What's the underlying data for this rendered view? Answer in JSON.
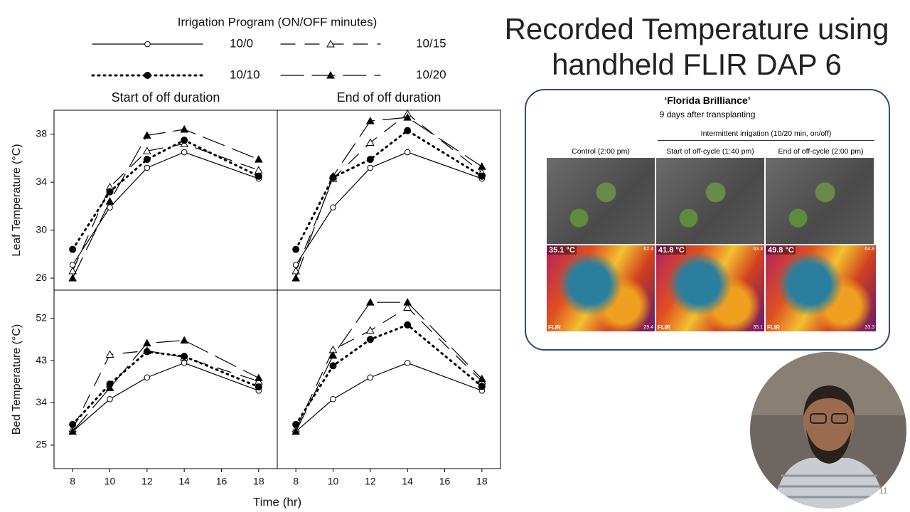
{
  "legend_title": "Irrigation Program (ON/OFF minutes)",
  "xlabel": "Time (hr)",
  "chart_data": [
    {
      "type": "line",
      "title": "Start of off duration",
      "ylabel": "Leaf Temperature (°C)",
      "x": [
        8,
        10,
        12,
        14,
        18
      ],
      "xlim": [
        7,
        19
      ],
      "ylim": [
        25,
        40
      ],
      "yticks": [
        26,
        30,
        34,
        38
      ],
      "series": [
        {
          "name": "10/0",
          "color": "#000000",
          "marker": "open-circle",
          "line": "solid",
          "values": [
            27.1,
            31.9,
            35.2,
            36.5,
            34.3
          ]
        },
        {
          "name": "10/15",
          "color": "#000000",
          "marker": "open-triangle",
          "line": "dashed",
          "values": [
            26.6,
            33.6,
            36.6,
            37.2,
            35.0
          ]
        },
        {
          "name": "10/10",
          "color": "#000000",
          "marker": "filled-circle",
          "line": "dotted",
          "values": [
            28.4,
            33.2,
            35.9,
            37.5,
            34.5
          ]
        },
        {
          "name": "10/20",
          "color": "#000000",
          "marker": "filled-triangle",
          "line": "long-dash",
          "values": [
            26.0,
            32.4,
            37.9,
            38.4,
            35.9
          ]
        }
      ]
    },
    {
      "type": "line",
      "title": "End of off duration",
      "x": [
        8,
        10,
        12,
        14,
        18
      ],
      "xlim": [
        7,
        19
      ],
      "ylim": [
        25,
        40
      ],
      "series": [
        {
          "name": "10/0",
          "color": "#000000",
          "marker": "open-circle",
          "line": "solid",
          "values": [
            27.1,
            31.9,
            35.2,
            36.5,
            34.3
          ]
        },
        {
          "name": "10/15",
          "color": "#000000",
          "marker": "open-triangle",
          "line": "dashed",
          "values": [
            26.6,
            34.3,
            37.3,
            39.7,
            34.8
          ]
        },
        {
          "name": "10/10",
          "color": "#000000",
          "marker": "filled-circle",
          "line": "dotted",
          "values": [
            28.4,
            34.4,
            35.9,
            38.3,
            34.5
          ]
        },
        {
          "name": "10/20",
          "color": "#000000",
          "marker": "filled-triangle",
          "line": "long-dash",
          "values": [
            26.0,
            34.5,
            39.1,
            39.4,
            35.3
          ]
        }
      ]
    },
    {
      "type": "line",
      "ylabel": "Bed Temperature (°C)",
      "x": [
        8,
        10,
        12,
        14,
        18
      ],
      "xlim": [
        7,
        19
      ],
      "ylim": [
        20,
        58
      ],
      "yticks": [
        25,
        34,
        43,
        52
      ],
      "xticks": [
        8,
        10,
        12,
        14,
        16,
        18
      ],
      "series": [
        {
          "name": "10/0",
          "color": "#000000",
          "marker": "open-circle",
          "line": "solid",
          "values": [
            27.9,
            34.8,
            39.4,
            42.5,
            36.6
          ]
        },
        {
          "name": "10/15",
          "color": "#000000",
          "marker": "open-triangle",
          "line": "dashed",
          "values": [
            28.4,
            44.3,
            45.1,
            43.7,
            38.6
          ]
        },
        {
          "name": "10/10",
          "color": "#000000",
          "marker": "filled-circle",
          "line": "dotted",
          "values": [
            29.4,
            38.0,
            44.9,
            43.9,
            37.4
          ]
        },
        {
          "name": "10/20",
          "color": "#000000",
          "marker": "filled-triangle",
          "line": "long-dash",
          "values": [
            27.9,
            37.2,
            46.7,
            47.3,
            39.3
          ]
        }
      ]
    },
    {
      "type": "line",
      "x": [
        8,
        10,
        12,
        14,
        18
      ],
      "xlim": [
        7,
        19
      ],
      "ylim": [
        20,
        58
      ],
      "xticks": [
        8,
        10,
        12,
        14,
        16,
        18
      ],
      "series": [
        {
          "name": "10/0",
          "color": "#000000",
          "marker": "open-circle",
          "line": "solid",
          "values": [
            27.9,
            34.8,
            39.4,
            42.5,
            36.6
          ]
        },
        {
          "name": "10/15",
          "color": "#000000",
          "marker": "open-triangle",
          "line": "dashed",
          "values": [
            28.4,
            45.3,
            49.4,
            54.3,
            38.6
          ]
        },
        {
          "name": "10/10",
          "color": "#000000",
          "marker": "filled-circle",
          "line": "dotted",
          "values": [
            29.4,
            41.9,
            47.5,
            50.6,
            37.5
          ]
        },
        {
          "name": "10/20",
          "color": "#000000",
          "marker": "filled-triangle",
          "line": "long-dash",
          "values": [
            27.9,
            44.1,
            55.4,
            55.4,
            39.1
          ]
        }
      ]
    }
  ],
  "slide": {
    "title": "Recorded Temperature using handheld FLIR DAP 6",
    "number": "11"
  },
  "figure": {
    "title": "‘Florida Brilliance’",
    "subtitle": "9 days after transplanting",
    "group_label": "Intermittent irrigation (10/20 min, on/off)",
    "panels": [
      {
        "label": "Control (2:00 pm)",
        "temp": "35.1 °C",
        "max": "62.4",
        "min": "29.4",
        "brand": "FLIR"
      },
      {
        "label": "Start of off-cycle (1:40 pm)",
        "temp": "41.8 °C",
        "max": "63.3",
        "min": "35.1",
        "brand": "FLIR"
      },
      {
        "label": "End of off-cycle (2:00 pm)",
        "temp": "49.8 °C",
        "max": "64.8",
        "min": "33.3",
        "brand": "FLIR"
      }
    ]
  }
}
